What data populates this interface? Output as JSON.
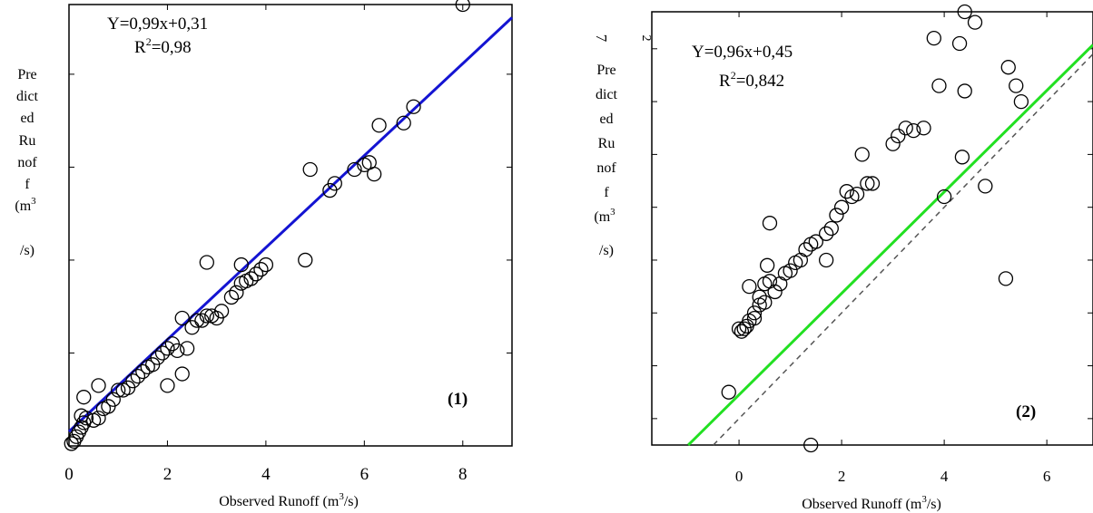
{
  "chart_data": [
    {
      "type": "scatter",
      "panel_label": "(1)",
      "equation": "Y=0,99x+0,31",
      "r2_prefix": "R",
      "r2_sup": "2",
      "r2_value": "=0,98",
      "ylabel_lines": [
        "Pre",
        "dict",
        "ed",
        "Ru",
        "nof",
        "f",
        "(m",
        "/s)"
      ],
      "ylabel_sup": "3",
      "xlabel": "Observed Runoff (m",
      "xlabel_sup": "3",
      "xlabel_end": "/s)",
      "xlim": [
        0,
        9
      ],
      "ylim": [
        0,
        9.5
      ],
      "xticks": [
        0,
        2,
        4,
        6,
        8
      ],
      "xtick_labels": [
        "0",
        "2",
        "4",
        "6",
        "8"
      ],
      "yticks": [
        2,
        4,
        6,
        8
      ],
      "ytick_labels": [
        "",
        "",
        "",
        ""
      ],
      "grid": false,
      "fit_line": {
        "slope": 0.99,
        "intercept": 0.31,
        "color": "#1414d2"
      },
      "points": [
        [
          0.05,
          0.05
        ],
        [
          0.1,
          0.1
        ],
        [
          0.15,
          0.2
        ],
        [
          0.2,
          0.3
        ],
        [
          0.25,
          0.4
        ],
        [
          0.3,
          0.5
        ],
        [
          0.35,
          0.6
        ],
        [
          0.25,
          0.65
        ],
        [
          0.3,
          1.05
        ],
        [
          0.5,
          0.55
        ],
        [
          0.6,
          0.6
        ],
        [
          0.7,
          0.8
        ],
        [
          0.6,
          1.3
        ],
        [
          0.8,
          0.85
        ],
        [
          0.9,
          1.0
        ],
        [
          1.0,
          1.2
        ],
        [
          1.1,
          1.2
        ],
        [
          1.2,
          1.25
        ],
        [
          1.3,
          1.4
        ],
        [
          1.4,
          1.5
        ],
        [
          1.5,
          1.6
        ],
        [
          1.6,
          1.7
        ],
        [
          1.7,
          1.75
        ],
        [
          1.8,
          1.9
        ],
        [
          1.9,
          2.0
        ],
        [
          2.0,
          2.1
        ],
        [
          2.1,
          2.2
        ],
        [
          2.0,
          1.3
        ],
        [
          2.2,
          2.05
        ],
        [
          2.3,
          1.55
        ],
        [
          2.4,
          2.1
        ],
        [
          2.3,
          2.75
        ],
        [
          2.5,
          2.55
        ],
        [
          2.6,
          2.7
        ],
        [
          2.7,
          2.7
        ],
        [
          2.8,
          2.8
        ],
        [
          2.9,
          2.8
        ],
        [
          3.0,
          2.75
        ],
        [
          3.1,
          2.9
        ],
        [
          3.3,
          3.2
        ],
        [
          3.4,
          3.3
        ],
        [
          3.5,
          3.5
        ],
        [
          3.6,
          3.55
        ],
        [
          3.7,
          3.6
        ],
        [
          3.8,
          3.7
        ],
        [
          3.9,
          3.8
        ],
        [
          4.0,
          3.9
        ],
        [
          3.5,
          3.9
        ],
        [
          2.8,
          3.95
        ],
        [
          4.8,
          4.0
        ],
        [
          4.9,
          5.95
        ],
        [
          5.3,
          5.5
        ],
        [
          5.4,
          5.65
        ],
        [
          5.8,
          5.95
        ],
        [
          6.0,
          6.05
        ],
        [
          6.1,
          6.1
        ],
        [
          6.2,
          5.85
        ],
        [
          6.3,
          6.9
        ],
        [
          6.8,
          6.95
        ],
        [
          7.0,
          7.3
        ],
        [
          8.0,
          9.5
        ]
      ]
    },
    {
      "type": "scatter",
      "panel_label": "(2)",
      "equation": "Y=0,96x+0,45",
      "r2_prefix": "R",
      "r2_sup": "2",
      "r2_value": "=0,842",
      "ylabel_lines": [
        "Pre",
        "dict",
        "ed",
        "Ru",
        "nof",
        "f",
        "(m",
        "/s)"
      ],
      "ylabel_sup": "3",
      "top_tick_labels": [
        "7",
        "2"
      ],
      "xlabel": "Observed Runoff (m",
      "xlabel_sup": "3",
      "xlabel_end": "/s)",
      "xlim": [
        -1.7,
        6.9
      ],
      "ylim": [
        -0.5,
        7.7
      ],
      "xticks": [
        0,
        2,
        4,
        6
      ],
      "xtick_labels": [
        "0",
        "2",
        "4",
        "6"
      ],
      "yticks": [
        0,
        1,
        2,
        3,
        4,
        5,
        6,
        7
      ],
      "grid": false,
      "fit_line": {
        "slope": 0.96,
        "intercept": 0.45,
        "color": "#22e022"
      },
      "identity_line": {
        "color": "#555555",
        "style": "dashed"
      },
      "points": [
        [
          -0.2,
          0.5
        ],
        [
          0.0,
          1.7
        ],
        [
          0.05,
          1.65
        ],
        [
          0.1,
          1.7
        ],
        [
          0.15,
          1.75
        ],
        [
          0.2,
          1.85
        ],
        [
          0.3,
          1.9
        ],
        [
          0.3,
          2.0
        ],
        [
          0.2,
          2.5
        ],
        [
          0.4,
          2.15
        ],
        [
          0.5,
          2.2
        ],
        [
          0.4,
          2.3
        ],
        [
          0.5,
          2.55
        ],
        [
          0.6,
          2.6
        ],
        [
          0.55,
          2.9
        ],
        [
          0.7,
          2.4
        ],
        [
          0.8,
          2.55
        ],
        [
          0.9,
          2.75
        ],
        [
          1.0,
          2.8
        ],
        [
          1.1,
          2.95
        ],
        [
          1.2,
          3.0
        ],
        [
          1.3,
          3.2
        ],
        [
          1.4,
          3.3
        ],
        [
          1.5,
          3.35
        ],
        [
          0.6,
          3.7
        ],
        [
          1.7,
          3.5
        ],
        [
          1.8,
          3.6
        ],
        [
          1.7,
          3.0
        ],
        [
          1.9,
          3.85
        ],
        [
          2.0,
          4.0
        ],
        [
          2.1,
          4.3
        ],
        [
          2.2,
          4.2
        ],
        [
          2.3,
          4.25
        ],
        [
          2.5,
          4.45
        ],
        [
          2.6,
          4.45
        ],
        [
          2.4,
          5.0
        ],
        [
          3.0,
          5.2
        ],
        [
          3.1,
          5.35
        ],
        [
          3.25,
          5.5
        ],
        [
          3.4,
          5.45
        ],
        [
          3.6,
          5.5
        ],
        [
          3.9,
          6.3
        ],
        [
          3.8,
          7.2
        ],
        [
          4.0,
          4.2
        ],
        [
          4.3,
          7.1
        ],
        [
          4.35,
          4.95
        ],
        [
          4.4,
          6.2
        ],
        [
          4.6,
          7.5
        ],
        [
          4.8,
          4.4
        ],
        [
          5.2,
          2.65
        ],
        [
          5.25,
          6.65
        ],
        [
          5.4,
          6.3
        ],
        [
          5.5,
          6.0
        ],
        [
          1.4,
          -0.5
        ],
        [
          4.4,
          7.8
        ]
      ]
    }
  ]
}
